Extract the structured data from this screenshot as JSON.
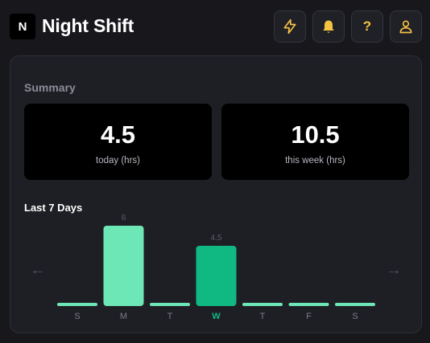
{
  "header": {
    "logo_letter": "N",
    "title": "Night Shift",
    "buttons": [
      {
        "name": "bolt",
        "icon": "bolt-icon"
      },
      {
        "name": "notifications",
        "icon": "bell-icon"
      },
      {
        "name": "help",
        "label": "?"
      },
      {
        "name": "profile",
        "icon": "user-icon"
      }
    ]
  },
  "summary": {
    "title": "Summary",
    "today": {
      "value": "4.5",
      "label": "today (hrs)"
    },
    "week": {
      "value": "10.5",
      "label": "this week (hrs)"
    }
  },
  "chart": {
    "title": "Last 7 Days",
    "prev_label": "←",
    "next_label": "→"
  },
  "chart_data": {
    "type": "bar",
    "categories": [
      "S",
      "M",
      "T",
      "W",
      "T",
      "F",
      "S"
    ],
    "values": [
      0,
      6,
      0,
      4.5,
      0,
      0,
      0
    ],
    "data_labels": [
      "",
      "6",
      "",
      "4.5",
      "",
      "",
      ""
    ],
    "highlight_index": 3,
    "ylim": [
      0,
      6
    ],
    "grid": false
  },
  "colors": {
    "accent": "#f5c242",
    "bar": "#6ee7b7",
    "bar_highlight": "#10b981",
    "background": "#17171c",
    "card": "#1e1f25"
  }
}
